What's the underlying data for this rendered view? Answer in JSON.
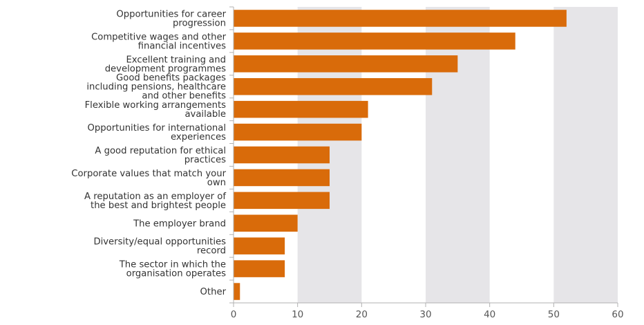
{
  "chart_data": {
    "type": "bar",
    "orientation": "horizontal",
    "categories": [
      [
        "Opportunities for career",
        "progression"
      ],
      [
        "Competitive wages and other",
        "financial incentives"
      ],
      [
        "Excellent training and",
        "development programmes"
      ],
      [
        "Good benefits packages",
        "including pensions, healthcare",
        "and other benefits"
      ],
      [
        "Flexible working arrangements",
        "available"
      ],
      [
        "Opportunities for international",
        "experiences"
      ],
      [
        "A good reputation for ethical",
        "practices"
      ],
      [
        "Corporate values that match your",
        "own"
      ],
      [
        "A reputation as an employer of",
        "the best and brightest people"
      ],
      [
        "The employer brand"
      ],
      [
        "Diversity/equal opportunities",
        "record"
      ],
      [
        "The sector in which the",
        "organisation operates"
      ],
      [
        "Other"
      ]
    ],
    "values": [
      52,
      44,
      35,
      31,
      21,
      20,
      15,
      15,
      15,
      10,
      8,
      8,
      1
    ],
    "xlim": [
      0,
      60
    ],
    "xticks": [
      0,
      10,
      20,
      30,
      40,
      50,
      60
    ],
    "grid": "alternating vertical bands",
    "title": "",
    "xlabel": "",
    "ylabel": "",
    "bar_color": "#d96b0a",
    "band_color": "#e6e5e8",
    "axis_color": "#b0b0b0"
  }
}
